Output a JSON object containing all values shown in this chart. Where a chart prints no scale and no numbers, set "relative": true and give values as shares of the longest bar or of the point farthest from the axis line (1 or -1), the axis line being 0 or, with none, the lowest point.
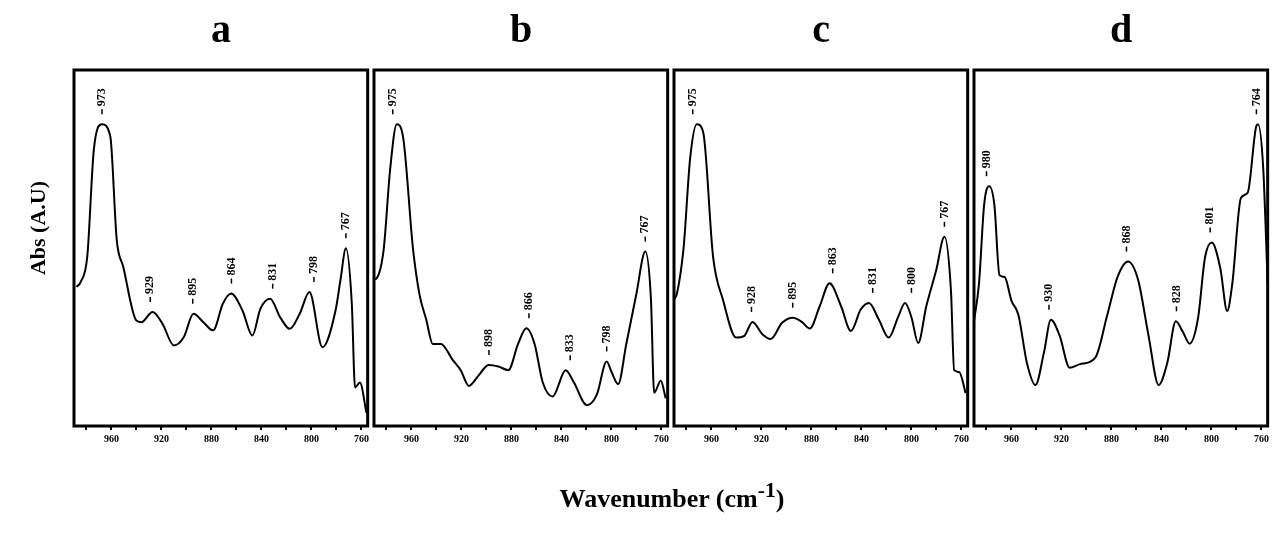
{
  "chart_data": [
    {
      "type": "line",
      "title": "a",
      "ylabel": "Abs (A.U)",
      "relative": true,
      "tick_labels": "x",
      "xlim": [
        990,
        755
      ],
      "xticks": [
        {
          "value": 980,
          "label": null
        },
        960,
        {
          "value": 940,
          "label": null
        },
        920,
        {
          "value": 900,
          "label": null
        },
        880,
        {
          "value": 860,
          "label": null
        },
        840,
        {
          "value": 820,
          "label": null
        },
        800,
        {
          "value": 780,
          "label": null
        },
        760
      ],
      "series": [
        {
          "color": "#000000",
          "x": [
            988,
            984.6,
            979.4,
            974.1,
            967.6,
            961,
            955.8,
            950.6,
            940.2,
            936.2,
            927.1,
            919.2,
            910.1,
            902.2,
            894.4,
            886.5,
            878.7,
            870.8,
            864.3,
            855.2,
            847.3,
            840.8,
            833,
            825.1,
            817.3,
            809.4,
            801.6,
            791.2,
            780.7,
            776.8,
            772.4,
            767.7,
            765.1,
            761.2,
            756
          ],
          "values": [
            0.461,
            0.478,
            0.561,
            0.917,
            1,
            0.961,
            0.617,
            0.528,
            0.35,
            0.344,
            0.378,
            0.339,
            0.267,
            0.294,
            0.372,
            0.344,
            0.317,
            0.406,
            0.439,
            0.383,
            0.3,
            0.389,
            0.422,
            0.361,
            0.322,
            0.372,
            0.444,
            0.261,
            0.383,
            0.483,
            0.589,
            0.406,
            0.128,
            0.144,
            0.044
          ]
        }
      ],
      "annotations": [
        {
          "text": "973",
          "x": 967.6,
          "y": 1
        },
        {
          "text": "929",
          "x": 929,
          "y": 0.378
        },
        {
          "text": "895",
          "x": 895,
          "y": 0.372
        },
        {
          "text": "864",
          "x": 864,
          "y": 0.439
        },
        {
          "text": "831",
          "x": 831,
          "y": 0.422
        },
        {
          "text": "798",
          "x": 798,
          "y": 0.444
        },
        {
          "text": "767",
          "x": 772.4,
          "y": 0.589
        }
      ]
    },
    {
      "type": "line",
      "title": "b",
      "xlabel": "Wavenumber (cm$^{-1}$)",
      "relative": true,
      "tick_labels": "x",
      "xlim": [
        990,
        755
      ],
      "xticks": [
        {
          "value": 980,
          "label": null
        },
        960,
        {
          "value": 940,
          "label": null
        },
        920,
        {
          "value": 900,
          "label": null
        },
        880,
        {
          "value": 860,
          "label": null
        },
        840,
        {
          "value": 820,
          "label": null
        },
        800,
        {
          "value": 780,
          "label": null
        },
        760
      ],
      "series": [
        {
          "color": "#000000",
          "x": [
            990,
            987.6,
            982.3,
            977.1,
            971.8,
            966.6,
            958.7,
            953.5,
            948.2,
            943,
            936.4,
            927.2,
            920.6,
            914.1,
            906.2,
            898.3,
            890.4,
            882.5,
            874.7,
            868.1,
            861.5,
            855,
            847.1,
            836.6,
            830.1,
            819.6,
            811.7,
            803.8,
            799.9,
            794.6,
            788.1,
            780.2,
            772.9,
            768.4,
            765.8,
            760.5,
            756.6
          ],
          "values": [
            0.486,
            0.491,
            0.584,
            0.85,
            1,
            0.954,
            0.584,
            0.434,
            0.353,
            0.272,
            0.272,
            0.22,
            0.185,
            0.133,
            0.168,
            0.202,
            0.197,
            0.185,
            0.272,
            0.324,
            0.272,
            0.145,
            0.098,
            0.185,
            0.145,
            0.069,
            0.104,
            0.214,
            0.179,
            0.139,
            0.272,
            0.434,
            0.578,
            0.422,
            0.11,
            0.15,
            0.092
          ]
        }
      ],
      "annotations": [
        {
          "text": "975",
          "x": 975,
          "y": 1
        },
        {
          "text": "898",
          "x": 898,
          "y": 0.202
        },
        {
          "text": "866",
          "x": 866,
          "y": 0.324
        },
        {
          "text": "833",
          "x": 833,
          "y": 0.185
        },
        {
          "text": "798",
          "x": 803.8,
          "y": 0.214
        },
        {
          "text": "767",
          "x": 772.9,
          "y": 0.578
        }
      ]
    },
    {
      "type": "line",
      "title": "c",
      "relative": true,
      "tick_labels": "x",
      "xlim": [
        990,
        755
      ],
      "xticks": [
        {
          "value": 980,
          "label": null
        },
        960,
        {
          "value": 940,
          "label": null
        },
        920,
        {
          "value": 900,
          "label": null
        },
        880,
        {
          "value": 860,
          "label": null
        },
        840,
        {
          "value": 820,
          "label": null
        },
        800,
        {
          "value": 780,
          "label": null
        },
        760
      ],
      "series": [
        {
          "color": "#000000",
          "x": [
            990,
            987.6,
            982.3,
            977.1,
            971.8,
            966.6,
            958.7,
            950.8,
            940.3,
            933.7,
            927.2,
            919.3,
            912.7,
            903.5,
            894.8,
            887.7,
            881.3,
            873.4,
            865.5,
            856.3,
            848.4,
            840.6,
            834,
            826.1,
            818.2,
            810.4,
            805.1,
            799.9,
            794.6,
            788.1,
            780.2,
            773.6,
            768.4,
            765.8,
            761.8,
            756.6
          ],
          "values": [
            0.418,
            0.44,
            0.592,
            0.886,
            1,
            0.973,
            0.56,
            0.418,
            0.293,
            0.299,
            0.345,
            0.304,
            0.288,
            0.342,
            0.359,
            0.345,
            0.323,
            0.397,
            0.473,
            0.397,
            0.315,
            0.386,
            0.408,
            0.353,
            0.293,
            0.364,
            0.408,
            0.359,
            0.275,
            0.397,
            0.516,
            0.627,
            0.451,
            0.185,
            0.179,
            0.109
          ]
        }
      ],
      "annotations": [
        {
          "text": "975",
          "x": 975,
          "y": 1
        },
        {
          "text": "928",
          "x": 928,
          "y": 0.345
        },
        {
          "text": "895",
          "x": 895,
          "y": 0.359
        },
        {
          "text": "863",
          "x": 863,
          "y": 0.473
        },
        {
          "text": "831",
          "x": 831,
          "y": 0.408
        },
        {
          "text": "800",
          "x": 800,
          "y": 0.408
        },
        {
          "text": "767",
          "x": 773.6,
          "y": 0.627
        }
      ]
    },
    {
      "type": "line",
      "title": "d",
      "relative": true,
      "tick_labels": "x",
      "xlim": [
        990,
        755
      ],
      "xticks": [
        {
          "value": 980,
          "label": null
        },
        960,
        {
          "value": 940,
          "label": null
        },
        920,
        {
          "value": 900,
          "label": null
        },
        880,
        {
          "value": 860,
          "label": null
        },
        840,
        {
          "value": 820,
          "label": null
        },
        800,
        {
          "value": 780,
          "label": null
        },
        760
      ],
      "series": [
        {
          "color": "#000000",
          "x": [
            990,
            986,
            981.9,
            977.8,
            973.7,
            969.6,
            965.5,
            960,
            954.5,
            947.7,
            940.8,
            934,
            928.5,
            921.6,
            913.4,
            905.2,
            892.9,
            883.3,
            875.1,
            866.8,
            858.6,
            850.4,
            842.2,
            835.3,
            828.5,
            823,
            817.5,
            810.7,
            805.2,
            799.7,
            792.9,
            787.4,
            783.3,
            776.4,
            771,
            764.1,
            762.7,
            758.6,
            755
          ],
          "values": [
            0.347,
            0.472,
            0.733,
            0.795,
            0.733,
            0.5,
            0.494,
            0.415,
            0.369,
            0.21,
            0.136,
            0.244,
            0.352,
            0.301,
            0.193,
            0.205,
            0.227,
            0.369,
            0.494,
            0.545,
            0.483,
            0.301,
            0.136,
            0.21,
            0.347,
            0.313,
            0.273,
            0.358,
            0.557,
            0.608,
            0.523,
            0.381,
            0.472,
            0.756,
            0.773,
            0.994,
            1,
            0.858,
            0.472
          ]
        }
      ],
      "annotations": [
        {
          "text": "980",
          "x": 980,
          "y": 0.795
        },
        {
          "text": "930",
          "x": 930,
          "y": 0.352
        },
        {
          "text": "868",
          "x": 868,
          "y": 0.545
        },
        {
          "text": "828",
          "x": 828,
          "y": 0.347
        },
        {
          "text": "801",
          "x": 801,
          "y": 0.608
        },
        {
          "text": "764",
          "x": 764,
          "y": 1
        }
      ]
    }
  ]
}
